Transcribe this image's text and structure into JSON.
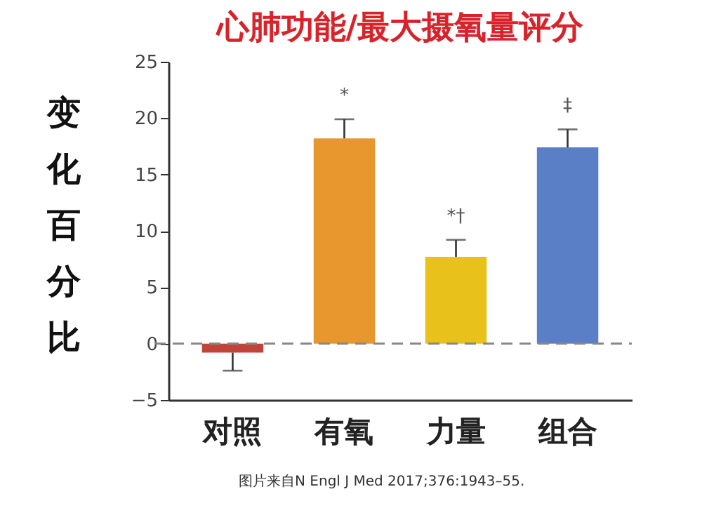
{
  "chart_data": {
    "type": "bar",
    "title": "心肺功能/最大摄氧量评分",
    "ylabel": "变化百分比",
    "categories": [
      "对照",
      "有氧",
      "力量",
      "组合"
    ],
    "values": [
      -0.8,
      18.2,
      7.7,
      17.4
    ],
    "colors": [
      "#c0443a",
      "#e8962e",
      "#e8c11a",
      "#5b7fc7"
    ],
    "errors": [
      [
        -2.4,
        -0.8
      ],
      [
        18.2,
        19.9
      ],
      [
        7.7,
        9.2
      ],
      [
        17.4,
        19.0
      ]
    ],
    "ylim": [
      -5,
      25
    ],
    "yticks": [
      -5,
      0,
      5,
      10,
      15,
      20,
      25
    ],
    "grid": false,
    "ref_lines": [
      {
        "axis": "y",
        "value": 0,
        "color": "#888888",
        "line_style": "dashed"
      }
    ],
    "annotations": [
      {
        "text": "*",
        "x": "有氧",
        "y": 19.9
      },
      {
        "text": "*†",
        "x": "力量",
        "y": 9.2
      },
      {
        "text": "‡",
        "x": "组合",
        "y": 19.0
      },
      "图片来自N Engl J Med 2017;376:1943–55."
    ]
  }
}
